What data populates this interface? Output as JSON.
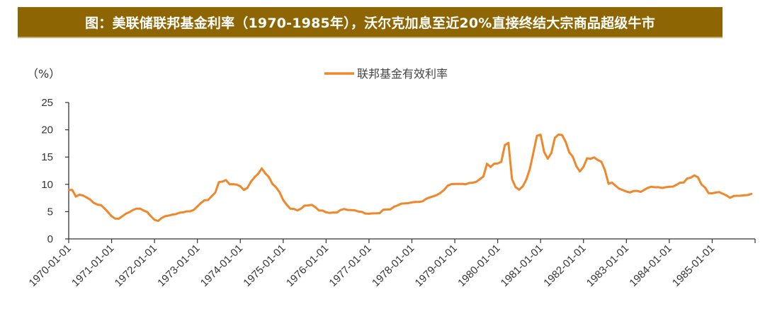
{
  "title": "图：美联储联邦基金利率（1970-1985年），沃尔克加息至近20%直接终结大宗商品超级牛市",
  "colors": {
    "title_bg": "#8e6503",
    "series": "#f0872a",
    "axis": "#333333"
  },
  "chart_data": {
    "type": "line",
    "title": "",
    "ylabel": "（%）",
    "xlabel": "",
    "ylim": [
      0,
      25
    ],
    "yticks": [
      "0",
      "5",
      "10",
      "15",
      "20",
      "25"
    ],
    "xticks": [
      "1970-01-01",
      "1971-01-01",
      "1972-01-01",
      "1973-01-01",
      "1974-01-01",
      "1975-01-01",
      "1976-01-01",
      "1977-01-01",
      "1978-01-01",
      "1979-01-01",
      "1980-01-01",
      "1981-01-01",
      "1982-01-01",
      "1983-01-01",
      "1984-01-01",
      "1985-01-01"
    ],
    "grid": false,
    "legend_position": "top",
    "x_start": "1970-01",
    "x_frequency": "monthly",
    "series": [
      {
        "name": "联邦基金有效利率",
        "values": [
          8.98,
          8.98,
          7.76,
          8.1,
          7.95,
          7.61,
          7.21,
          6.61,
          6.29,
          6.2,
          5.6,
          4.9,
          4.14,
          3.72,
          3.71,
          4.15,
          4.63,
          4.91,
          5.31,
          5.56,
          5.55,
          5.2,
          4.91,
          4.14,
          3.5,
          3.29,
          3.83,
          4.17,
          4.27,
          4.46,
          4.55,
          4.8,
          4.87,
          5.04,
          5.06,
          5.33,
          5.94,
          6.58,
          7.09,
          7.12,
          7.84,
          8.49,
          10.4,
          10.5,
          10.78,
          10.01,
          10.03,
          9.95,
          9.65,
          8.97,
          9.35,
          10.51,
          11.31,
          11.93,
          12.92,
          12.01,
          11.34,
          10.06,
          9.45,
          8.53,
          7.13,
          6.24,
          5.54,
          5.49,
          5.22,
          5.55,
          6.1,
          6.14,
          6.24,
          5.82,
          5.22,
          5.2,
          4.87,
          4.77,
          4.84,
          4.82,
          5.29,
          5.48,
          5.31,
          5.29,
          5.25,
          5.02,
          4.95,
          4.65,
          4.61,
          4.68,
          4.69,
          4.73,
          5.35,
          5.39,
          5.42,
          5.9,
          6.14,
          6.47,
          6.51,
          6.56,
          6.7,
          6.78,
          6.79,
          6.89,
          7.36,
          7.6,
          7.81,
          8.04,
          8.45,
          8.96,
          9.76,
          10.03,
          10.07,
          10.06,
          10.09,
          10.01,
          10.24,
          10.29,
          10.47,
          10.94,
          11.43,
          13.77,
          13.18,
          13.78,
          13.82,
          14.13,
          17.19,
          17.61,
          10.98,
          9.47,
          9.03,
          9.61,
          10.87,
          12.81,
          15.85,
          18.9,
          19.08,
          15.93,
          14.7,
          15.72,
          18.52,
          19.1,
          19.04,
          17.82,
          15.87,
          15.08,
          13.31,
          12.37,
          13.22,
          14.78,
          14.68,
          14.94,
          14.45,
          14.15,
          12.59,
          10.12,
          10.31,
          9.71,
          9.2,
          8.95,
          8.68,
          8.51,
          8.77,
          8.8,
          8.63,
          8.98,
          9.37,
          9.56,
          9.45,
          9.48,
          9.34,
          9.47,
          9.56,
          9.59,
          9.91,
          10.29,
          10.32,
          11.06,
          11.23,
          11.64,
          11.3,
          9.99,
          9.43,
          8.38,
          8.35,
          8.5,
          8.58,
          8.27,
          7.97,
          7.53,
          7.88,
          7.9,
          7.92,
          7.99,
          8.05,
          8.27
        ]
      }
    ]
  }
}
